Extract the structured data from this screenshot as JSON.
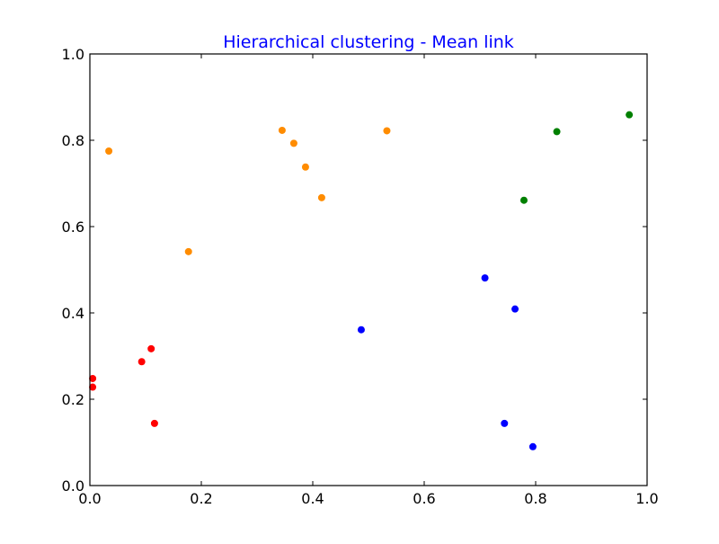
{
  "chart_data": {
    "type": "scatter",
    "title": "Hierarchical clustering - Mean link",
    "title_color": "#0000ff",
    "xlabel": "",
    "ylabel": "",
    "xlim": [
      0.0,
      1.0
    ],
    "ylim": [
      0.0,
      1.0
    ],
    "xticks": [
      "0.0",
      "0.2",
      "0.4",
      "0.6",
      "0.8",
      "1.0"
    ],
    "yticks": [
      "0.0",
      "0.2",
      "0.4",
      "0.6",
      "0.8",
      "1.0"
    ],
    "grid": false,
    "legend": "none",
    "series": [
      {
        "color": "#ff0000",
        "points": [
          [
            0.005,
            0.248
          ],
          [
            0.005,
            0.228
          ],
          [
            0.093,
            0.287
          ],
          [
            0.11,
            0.317
          ],
          [
            0.116,
            0.144
          ]
        ]
      },
      {
        "color": "#ff8c00",
        "points": [
          [
            0.034,
            0.775
          ],
          [
            0.177,
            0.542
          ],
          [
            0.345,
            0.823
          ],
          [
            0.366,
            0.793
          ],
          [
            0.387,
            0.738
          ],
          [
            0.416,
            0.667
          ],
          [
            0.533,
            0.822
          ]
        ]
      },
      {
        "color": "#0000ff",
        "points": [
          [
            0.487,
            0.361
          ],
          [
            0.709,
            0.481
          ],
          [
            0.763,
            0.409
          ],
          [
            0.744,
            0.144
          ],
          [
            0.795,
            0.09
          ]
        ]
      },
      {
        "color": "#008000",
        "points": [
          [
            0.779,
            0.661
          ],
          [
            0.838,
            0.82
          ],
          [
            0.968,
            0.859
          ]
        ]
      }
    ]
  }
}
